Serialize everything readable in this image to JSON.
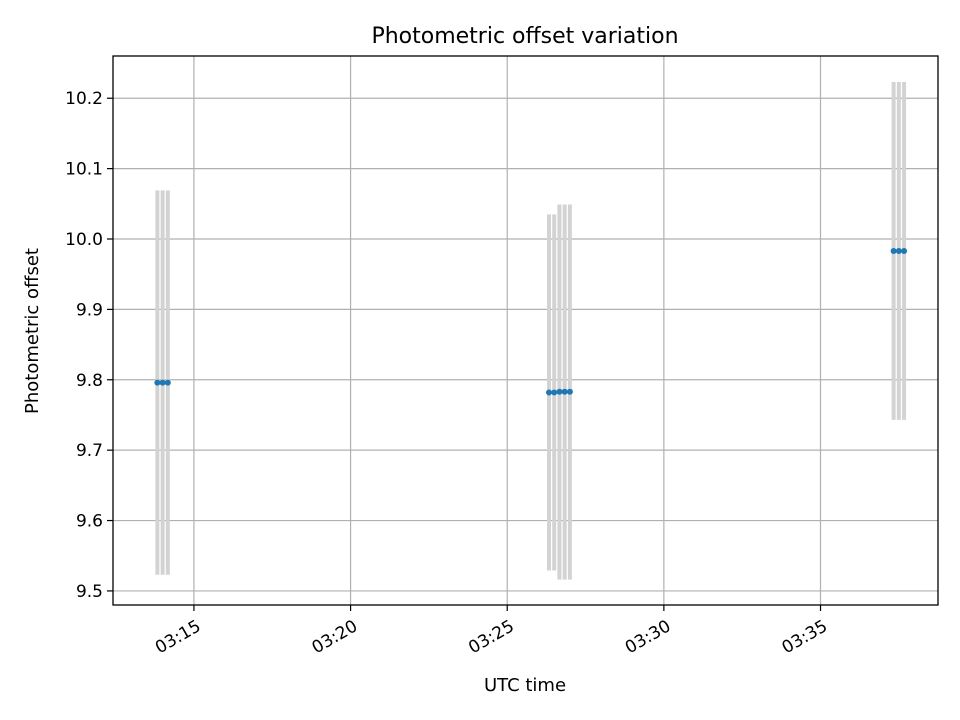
{
  "chart_data": {
    "type": "scatter",
    "title": "Photometric offset variation",
    "xlabel": "UTC time",
    "ylabel": "Photometric offset",
    "x_ticks": [
      "03:15",
      "03:20",
      "03:25",
      "03:30",
      "03:35"
    ],
    "x_tick_values": [
      "03:15",
      "03:20",
      "03:25",
      "03:30",
      "03:35"
    ],
    "xlim": [
      "03:12:25",
      "03:38:45"
    ],
    "y_ticks": [
      "9.5",
      "9.6",
      "9.7",
      "9.8",
      "9.9",
      "10.0",
      "10.1",
      "10.2"
    ],
    "y_tick_values": [
      9.5,
      9.6,
      9.7,
      9.8,
      9.9,
      10.0,
      10.1,
      10.2
    ],
    "ylim": [
      9.48,
      10.26
    ],
    "grid": true,
    "marker_color": "#1f77b4",
    "errorbar_color": "#d3d3d3",
    "series": [
      {
        "points": [
          {
            "x": "03:13:50",
            "y": 9.796,
            "ylow": 9.523,
            "yhigh": 10.069
          },
          {
            "x": "03:14:00",
            "y": 9.796,
            "ylow": 9.523,
            "yhigh": 10.069
          },
          {
            "x": "03:14:10",
            "y": 9.796,
            "ylow": 9.523,
            "yhigh": 10.069
          },
          {
            "x": "03:26:20",
            "y": 9.782,
            "ylow": 9.529,
            "yhigh": 10.035
          },
          {
            "x": "03:26:30",
            "y": 9.782,
            "ylow": 9.529,
            "yhigh": 10.035
          },
          {
            "x": "03:26:40",
            "y": 9.783,
            "ylow": 9.516,
            "yhigh": 10.049
          },
          {
            "x": "03:26:50",
            "y": 9.783,
            "ylow": 9.516,
            "yhigh": 10.049
          },
          {
            "x": "03:27:00",
            "y": 9.783,
            "ylow": 9.516,
            "yhigh": 10.049
          },
          {
            "x": "03:37:20",
            "y": 9.983,
            "ylow": 9.743,
            "yhigh": 10.223
          },
          {
            "x": "03:37:30",
            "y": 9.983,
            "ylow": 9.743,
            "yhigh": 10.223
          },
          {
            "x": "03:37:40",
            "y": 9.983,
            "ylow": 9.743,
            "yhigh": 10.223
          }
        ]
      }
    ]
  }
}
